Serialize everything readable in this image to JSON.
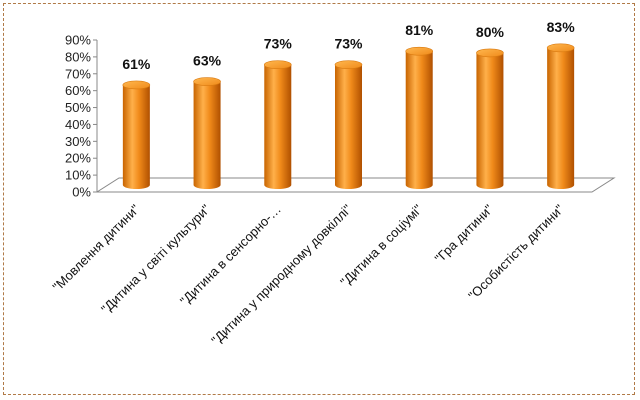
{
  "chart_data": {
    "type": "bar",
    "style": "3d-cylinder",
    "title": "",
    "xlabel": "",
    "ylabel": "",
    "categories": [
      "\"Мовлення дитини\"",
      "\"Дитина у світі культури\"",
      "\"Дитина в сенсорно-…",
      "\"Дитина у природному довкіллі\"",
      "\"Дитина в соціумі\"",
      "\"Гра дитини\"",
      "\"Особистість дитини\""
    ],
    "series": [
      {
        "values": [
          61,
          63,
          73,
          73,
          81,
          80,
          83
        ]
      }
    ],
    "data_labels": [
      "61%",
      "63%",
      "73%",
      "73%",
      "81%",
      "80%",
      "83%"
    ],
    "ylim": [
      0,
      90
    ],
    "yticks": [
      0,
      10,
      20,
      30,
      40,
      50,
      60,
      70,
      80,
      90
    ],
    "ytick_labels": [
      "0%",
      "10%",
      "20%",
      "30%",
      "40%",
      "50%",
      "60%",
      "70%",
      "80%",
      "90%"
    ],
    "grid": false,
    "legend": "none",
    "colors": {
      "bar_light": "#ffb04a",
      "bar_mid": "#f08a1a",
      "bar_dark": "#b85500",
      "bar_top": "#ff9a30",
      "frame_border": "#b07a47",
      "axis": "#888888"
    }
  }
}
